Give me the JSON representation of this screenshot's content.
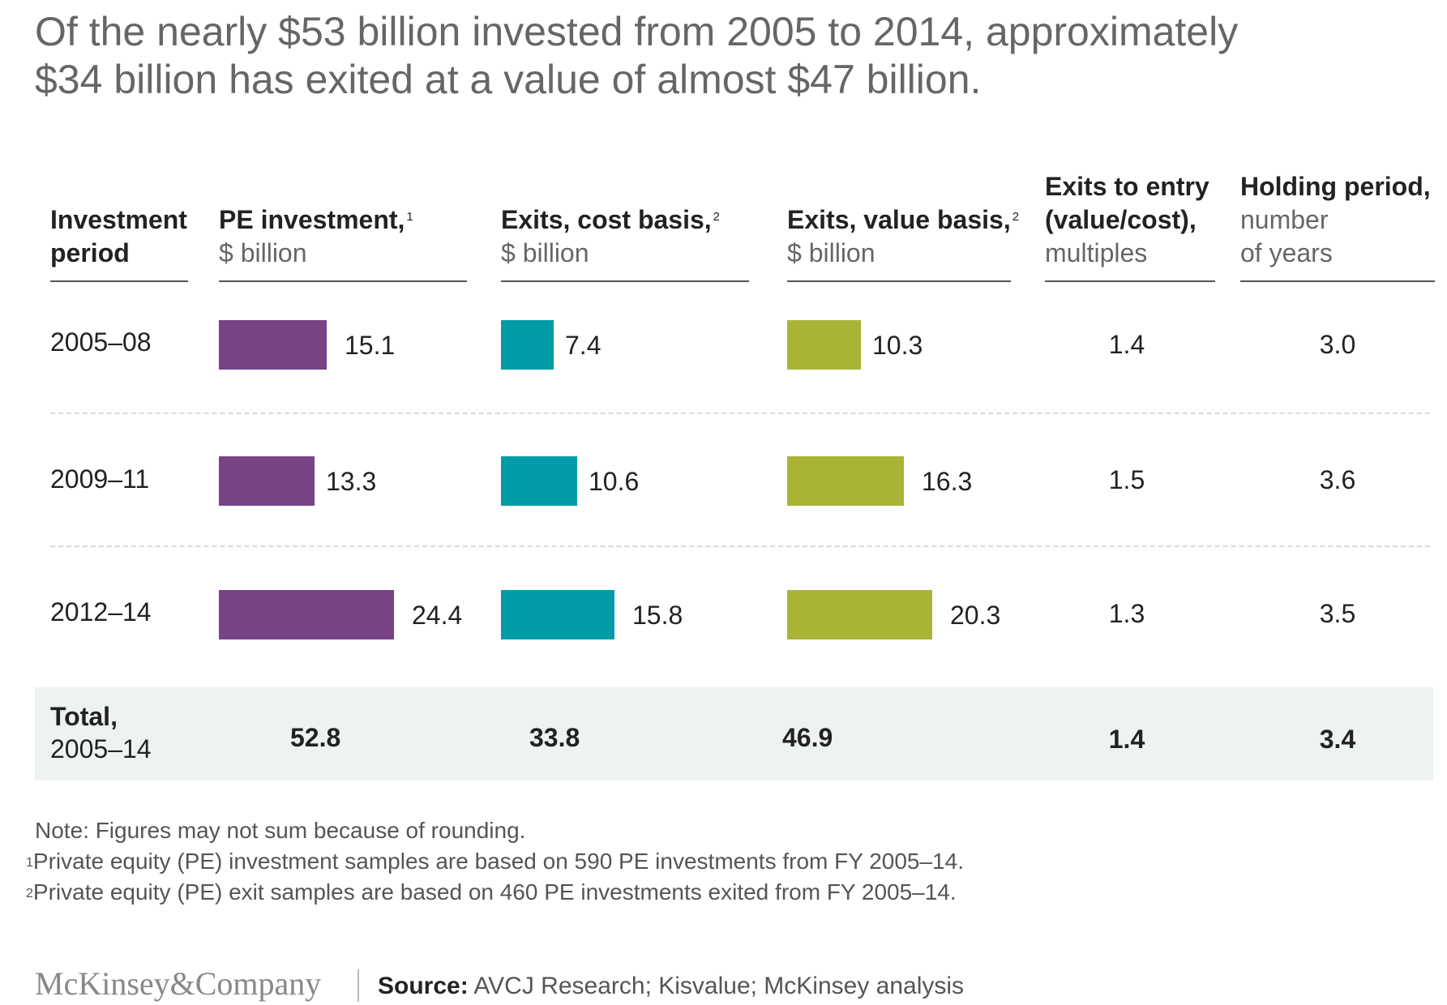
{
  "title": {
    "line1": "Of the nearly $53 billion invested from 2005 to 2014, approximately",
    "line2": "$34 billion has exited at a value of almost $47 billion."
  },
  "headers": {
    "period": {
      "line1": "Investment",
      "line2": "period"
    },
    "pe": {
      "label": "PE investment,",
      "sup": "1",
      "unit": "$ billion"
    },
    "exit_cost": {
      "label": "Exits, cost basis,",
      "sup": "2",
      "unit": "$ billion"
    },
    "exit_value": {
      "label": "Exits, value basis,",
      "sup": "2",
      "unit": "$ billion"
    },
    "multiple": {
      "line1": "Exits to entry",
      "line2": "(value/cost),",
      "line3": "multiples"
    },
    "holding": {
      "line1": "Holding period,",
      "line2": "number",
      "line3": "of years"
    }
  },
  "chart_data": {
    "type": "bar",
    "categories": [
      "2005–08",
      "2009–11",
      "2012–14"
    ],
    "series": [
      {
        "name": "PE investment",
        "values": [
          15.1,
          13.3,
          24.4
        ],
        "color": "#774385"
      },
      {
        "name": "Exits, cost basis",
        "values": [
          7.4,
          10.6,
          15.8
        ],
        "color": "#009ca7"
      },
      {
        "name": "Exits, value basis",
        "values": [
          10.3,
          16.3,
          20.3
        ],
        "color": "#a9b437"
      }
    ],
    "multiples": [
      "1.4",
      "1.5",
      "1.3"
    ],
    "holding_periods": [
      "3.0",
      "3.6",
      "3.5"
    ],
    "value_labels": [
      [
        "15.1",
        "13.3",
        "24.4"
      ],
      [
        "7.4",
        "10.6",
        "15.8"
      ],
      [
        "10.3",
        "16.3",
        "20.3"
      ]
    ],
    "unit": "$ billion"
  },
  "total": {
    "label": "Total,",
    "period": "2005–14",
    "pe": "52.8",
    "exit_cost": "33.8",
    "exit_value": "46.9",
    "multiple": "1.4",
    "holding": "3.4"
  },
  "notes": {
    "note": "Note: Figures may not sum because of rounding.",
    "fn1_mark": "1",
    "fn1": "Private equity (PE) investment samples are based on 590 PE investments from FY 2005–14.",
    "fn2_mark": "2",
    "fn2": "Private equity (PE) exit samples are based on 460 PE investments exited from FY 2005–14."
  },
  "footer": {
    "logo": "McKinsey&Company",
    "source_label": "Source:",
    "source_text": " AVCJ Research; Kisvalue; McKinsey analysis"
  }
}
